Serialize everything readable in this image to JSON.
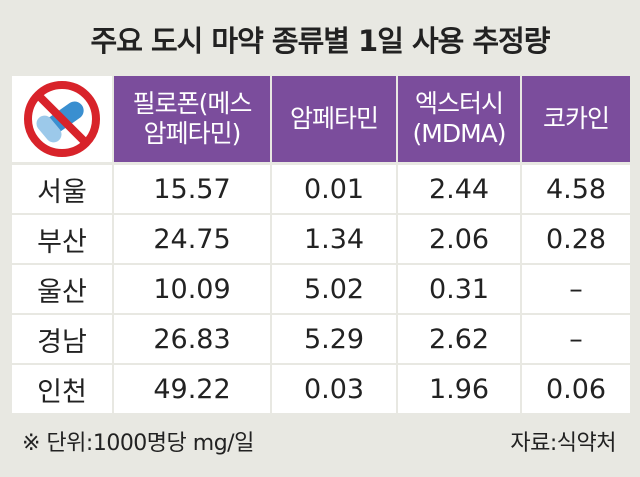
{
  "header": {
    "title": "주요 도시 마약 종류별 1일 사용 추정량"
  },
  "table": {
    "columns": [
      [
        "필로폰(메스",
        "암페타민)"
      ],
      [
        "암페타민"
      ],
      [
        "엑스터시",
        "(MDMA)"
      ],
      [
        "코카인"
      ]
    ],
    "rows": [
      [
        "서울",
        "15.57",
        "0.01",
        "2.44",
        "4.58"
      ],
      [
        "부산",
        "24.75",
        "1.34",
        "2.06",
        "0.28"
      ],
      [
        "울산",
        "10.09",
        "5.02",
        "0.31",
        "–"
      ],
      [
        "경남",
        "26.83",
        "5.29",
        "2.62",
        "–"
      ],
      [
        "인천",
        "49.22",
        "0.03",
        "1.96",
        "0.06"
      ]
    ]
  },
  "footer": {
    "note": "※ 단위:1000명당 mg/일",
    "source": "자료:식약처"
  }
}
